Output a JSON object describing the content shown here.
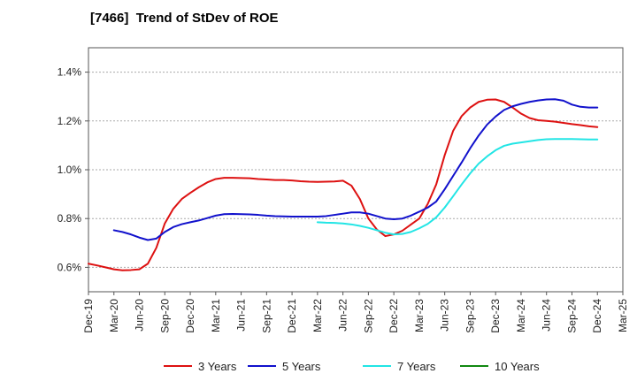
{
  "chart_data": {
    "type": "line",
    "title": "[7466]  Trend of StDev of ROE",
    "xlabel": "",
    "ylabel": "",
    "x_tick_labels": [
      "Dec-19",
      "Mar-20",
      "Jun-20",
      "Sep-20",
      "Dec-20",
      "Mar-21",
      "Jun-21",
      "Sep-21",
      "Dec-21",
      "Mar-22",
      "Jun-22",
      "Sep-22",
      "Dec-22",
      "Mar-23",
      "Jun-23",
      "Sep-23",
      "Dec-23",
      "Mar-24",
      "Jun-24",
      "Sep-24",
      "Dec-24",
      "Mar-25"
    ],
    "y_tick_labels": [
      "0.6%",
      "0.8%",
      "1.0%",
      "1.2%",
      "1.4%"
    ],
    "y_ticks": [
      0.6,
      0.8,
      1.0,
      1.2,
      1.4
    ],
    "ylim": [
      0.5,
      1.5
    ],
    "grid": true,
    "legend_position": "bottom",
    "series": [
      {
        "name": "3 Years",
        "color": "#dd1111",
        "x": [
          "Dec-19",
          "Jan-20",
          "Feb-20",
          "Mar-20",
          "Apr-20",
          "May-20",
          "Jun-20",
          "Jul-20",
          "Aug-20",
          "Sep-20",
          "Oct-20",
          "Nov-20",
          "Dec-20",
          "Jan-21",
          "Feb-21",
          "Mar-21",
          "Apr-21",
          "May-21",
          "Jun-21",
          "Jul-21",
          "Aug-21",
          "Sep-21",
          "Oct-21",
          "Nov-21",
          "Dec-21",
          "Jan-22",
          "Feb-22",
          "Mar-22",
          "Apr-22",
          "May-22",
          "Jun-22",
          "Jul-22",
          "Aug-22",
          "Sep-22",
          "Oct-22",
          "Nov-22",
          "Dec-22",
          "Jan-23",
          "Feb-23",
          "Mar-23",
          "Apr-23",
          "May-23",
          "Jun-23",
          "Jul-23",
          "Aug-23",
          "Sep-23",
          "Oct-23",
          "Nov-23",
          "Dec-23",
          "Jan-24",
          "Feb-24",
          "Mar-24",
          "Apr-24",
          "May-24",
          "Jun-24",
          "Jul-24",
          "Aug-24",
          "Sep-24",
          "Oct-24",
          "Nov-24",
          "Dec-24"
        ],
        "values": [
          0.615,
          0.608,
          0.6,
          0.592,
          0.588,
          0.589,
          0.592,
          0.615,
          0.68,
          0.78,
          0.84,
          0.88,
          0.905,
          0.928,
          0.948,
          0.962,
          0.967,
          0.967,
          0.966,
          0.965,
          0.962,
          0.96,
          0.958,
          0.958,
          0.956,
          0.953,
          0.951,
          0.95,
          0.951,
          0.952,
          0.955,
          0.935,
          0.88,
          0.8,
          0.755,
          0.728,
          0.735,
          0.75,
          0.775,
          0.8,
          0.86,
          0.94,
          1.06,
          1.16,
          1.22,
          1.255,
          1.278,
          1.287,
          1.288,
          1.278,
          1.255,
          1.23,
          1.212,
          1.203,
          1.2,
          1.197,
          1.192,
          1.187,
          1.183,
          1.178,
          1.175
        ]
      },
      {
        "name": "5 Years",
        "color": "#1111cc",
        "x": [
          "Mar-20",
          "Apr-20",
          "May-20",
          "Jun-20",
          "Jul-20",
          "Aug-20",
          "Sep-20",
          "Oct-20",
          "Nov-20",
          "Dec-20",
          "Jan-21",
          "Feb-21",
          "Mar-21",
          "Apr-21",
          "May-21",
          "Jun-21",
          "Jul-21",
          "Aug-21",
          "Sep-21",
          "Oct-21",
          "Nov-21",
          "Dec-21",
          "Jan-22",
          "Feb-22",
          "Mar-22",
          "Apr-22",
          "May-22",
          "Jun-22",
          "Jul-22",
          "Aug-22",
          "Sep-22",
          "Oct-22",
          "Nov-22",
          "Dec-22",
          "Jan-23",
          "Feb-23",
          "Mar-23",
          "Apr-23",
          "May-23",
          "Jun-23",
          "Jul-23",
          "Aug-23",
          "Sep-23",
          "Oct-23",
          "Nov-23",
          "Dec-23",
          "Jan-24",
          "Feb-24",
          "Mar-24",
          "Apr-24",
          "May-24",
          "Jun-24",
          "Jul-24",
          "Aug-24",
          "Sep-24",
          "Oct-24",
          "Nov-24",
          "Dec-24"
        ],
        "values": [
          0.752,
          0.745,
          0.735,
          0.722,
          0.712,
          0.718,
          0.745,
          0.765,
          0.777,
          0.785,
          0.792,
          0.802,
          0.812,
          0.818,
          0.819,
          0.818,
          0.817,
          0.815,
          0.812,
          0.81,
          0.809,
          0.808,
          0.808,
          0.808,
          0.808,
          0.81,
          0.815,
          0.82,
          0.825,
          0.825,
          0.82,
          0.81,
          0.8,
          0.797,
          0.8,
          0.812,
          0.828,
          0.845,
          0.87,
          0.92,
          0.975,
          1.03,
          1.088,
          1.14,
          1.185,
          1.218,
          1.245,
          1.26,
          1.27,
          1.278,
          1.284,
          1.288,
          1.289,
          1.283,
          1.267,
          1.258,
          1.255,
          1.255
        ]
      },
      {
        "name": "7 Years",
        "color": "#22e5e5",
        "x": [
          "Mar-22",
          "Apr-22",
          "May-22",
          "Jun-22",
          "Jul-22",
          "Aug-22",
          "Sep-22",
          "Oct-22",
          "Nov-22",
          "Dec-22",
          "Jan-23",
          "Feb-23",
          "Mar-23",
          "Apr-23",
          "May-23",
          "Jun-23",
          "Jul-23",
          "Aug-23",
          "Sep-23",
          "Oct-23",
          "Nov-23",
          "Dec-23",
          "Jan-24",
          "Feb-24",
          "Mar-24",
          "Apr-24",
          "May-24",
          "Jun-24",
          "Jul-24",
          "Aug-24",
          "Sep-24",
          "Oct-24",
          "Nov-24",
          "Dec-24"
        ],
        "values": [
          0.785,
          0.783,
          0.782,
          0.78,
          0.776,
          0.77,
          0.762,
          0.752,
          0.742,
          0.735,
          0.737,
          0.745,
          0.76,
          0.778,
          0.805,
          0.845,
          0.892,
          0.94,
          0.985,
          1.025,
          1.055,
          1.08,
          1.098,
          1.107,
          1.112,
          1.117,
          1.122,
          1.125,
          1.126,
          1.126,
          1.126,
          1.125,
          1.124,
          1.124
        ]
      },
      {
        "name": "10 Years",
        "color": "#118811",
        "x": [],
        "values": []
      }
    ]
  }
}
